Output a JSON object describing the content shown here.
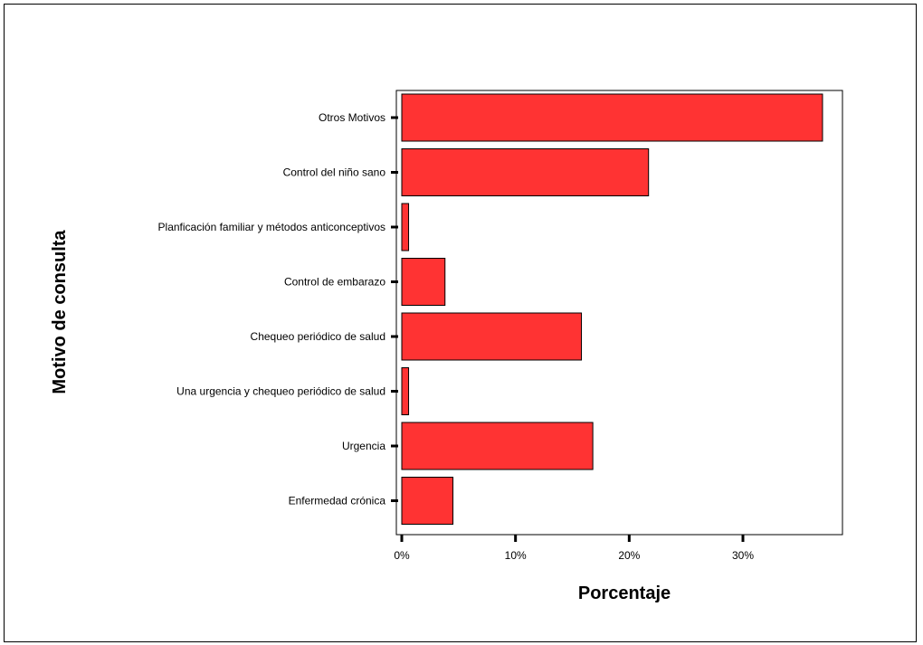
{
  "chart_data": {
    "type": "bar",
    "orientation": "horizontal",
    "categories": [
      "Otros Motivos",
      "Control del niño sano",
      "Planficación familiar y métodos anticonceptivos",
      "Control de embarazo",
      "Chequeo periódico de salud",
      "Una urgencia y chequeo periódico de salud",
      "Urgencia",
      "Enfermedad crónica"
    ],
    "values": [
      37.0,
      21.7,
      0.6,
      3.8,
      15.8,
      0.6,
      16.8,
      4.5
    ],
    "xlabel": "Porcentaje",
    "ylabel": "Motivo de consulta",
    "xlim": [
      0,
      38.5
    ],
    "xticks": [
      0,
      10,
      20,
      30
    ],
    "xtick_labels": [
      "0%",
      "10%",
      "20%",
      "30%"
    ],
    "grid": false,
    "bar_color": "#ff3333"
  }
}
